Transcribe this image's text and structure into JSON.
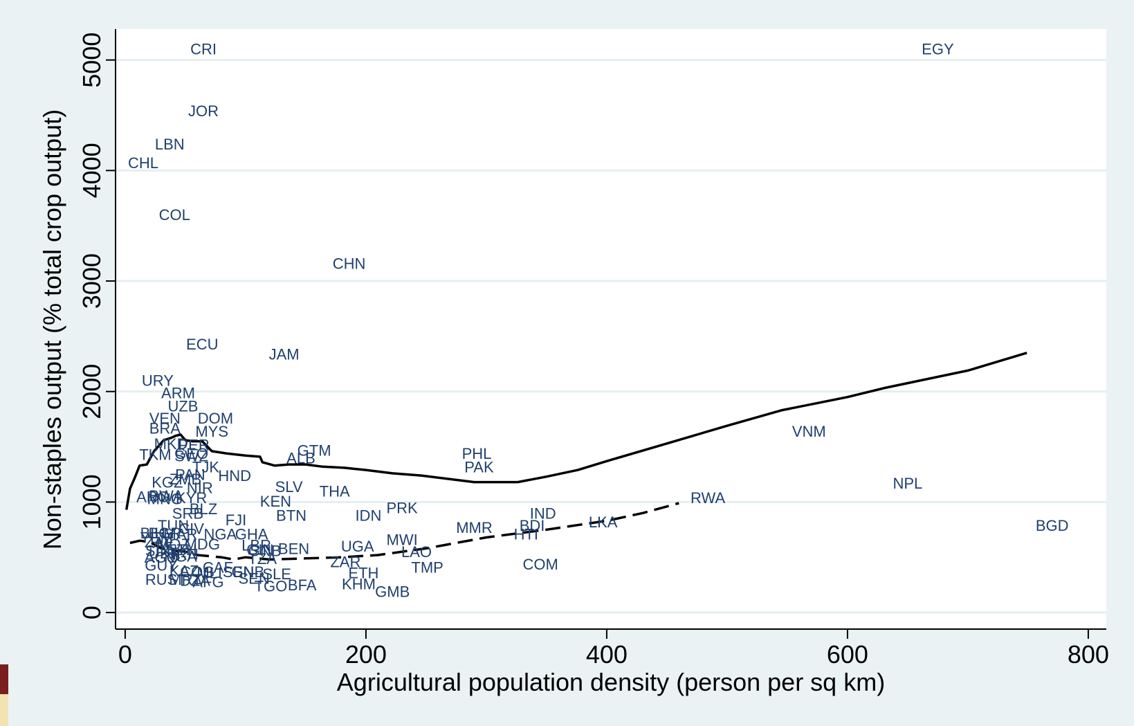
{
  "chart_data": {
    "type": "scatter",
    "xlabel": "Agricultural population density (person per sq km)",
    "ylabel": "Non-staples output (% total crop output)",
    "xlim": [
      -8,
      815
    ],
    "ylim": [
      -150,
      5280
    ],
    "xticks": [
      0,
      200,
      400,
      600,
      800
    ],
    "yticks": [
      0,
      1000,
      2000,
      3000,
      4000,
      5000
    ],
    "grid": "horizontal",
    "colors": {
      "background": "#eaf2f3",
      "plot": "#ffffff",
      "label": "#1f3f6e",
      "axis": "#000000",
      "grid": "#e4eef0"
    },
    "points": [
      {
        "label": "CRI",
        "x": 65,
        "y": 5100
      },
      {
        "label": "EGY",
        "x": 675,
        "y": 5100
      },
      {
        "label": "JOR",
        "x": 65,
        "y": 4540
      },
      {
        "label": "LBN",
        "x": 37,
        "y": 4240
      },
      {
        "label": "CHL",
        "x": 15,
        "y": 4070
      },
      {
        "label": "COL",
        "x": 41,
        "y": 3600
      },
      {
        "label": "CHN",
        "x": 186,
        "y": 3160
      },
      {
        "label": "ECU",
        "x": 64,
        "y": 2430
      },
      {
        "label": "JAM",
        "x": 132,
        "y": 2340
      },
      {
        "label": "URY",
        "x": 27,
        "y": 2100
      },
      {
        "label": "ARM",
        "x": 44,
        "y": 1990
      },
      {
        "label": "UZB",
        "x": 48,
        "y": 1870
      },
      {
        "label": "VEN",
        "x": 33,
        "y": 1760
      },
      {
        "label": "DOM",
        "x": 75,
        "y": 1760
      },
      {
        "label": "BRA",
        "x": 33,
        "y": 1670
      },
      {
        "label": "MYS",
        "x": 72,
        "y": 1640
      },
      {
        "label": "VNM",
        "x": 568,
        "y": 1640
      },
      {
        "label": "MKD",
        "x": 38,
        "y": 1530
      },
      {
        "label": "PER",
        "x": 57,
        "y": 1520
      },
      {
        "label": "GTM",
        "x": 157,
        "y": 1470
      },
      {
        "label": "PHL",
        "x": 292,
        "y": 1440
      },
      {
        "label": "TKM",
        "x": 25,
        "y": 1430
      },
      {
        "label": "GEO",
        "x": 55,
        "y": 1440
      },
      {
        "label": "SWZ",
        "x": 55,
        "y": 1420
      },
      {
        "label": "ALB",
        "x": 146,
        "y": 1400
      },
      {
        "label": "PAK",
        "x": 294,
        "y": 1320
      },
      {
        "label": "TJK",
        "x": 67,
        "y": 1320
      },
      {
        "label": "HND",
        "x": 91,
        "y": 1240
      },
      {
        "label": "PAN",
        "x": 54,
        "y": 1250
      },
      {
        "label": "KGZ",
        "x": 35,
        "y": 1180
      },
      {
        "label": "ZMB",
        "x": 50,
        "y": 1210
      },
      {
        "label": "NPL",
        "x": 650,
        "y": 1170
      },
      {
        "label": "SLV",
        "x": 136,
        "y": 1140
      },
      {
        "label": "NIR",
        "x": 62,
        "y": 1130
      },
      {
        "label": "THA",
        "x": 174,
        "y": 1100
      },
      {
        "label": "ARG",
        "x": 23,
        "y": 1050
      },
      {
        "label": "BWA",
        "x": 34,
        "y": 1060
      },
      {
        "label": "MNG",
        "x": 33,
        "y": 1030
      },
      {
        "label": "KYR",
        "x": 55,
        "y": 1040
      },
      {
        "label": "RWA",
        "x": 484,
        "y": 1040
      },
      {
        "label": "KEN",
        "x": 125,
        "y": 1010
      },
      {
        "label": "PRK",
        "x": 230,
        "y": 950
      },
      {
        "label": "BLZ",
        "x": 65,
        "y": 940
      },
      {
        "label": "SRB",
        "x": 52,
        "y": 900
      },
      {
        "label": "IND",
        "x": 347,
        "y": 900
      },
      {
        "label": "BTN",
        "x": 138,
        "y": 880
      },
      {
        "label": "IDN",
        "x": 202,
        "y": 880
      },
      {
        "label": "FJI",
        "x": 92,
        "y": 840
      },
      {
        "label": "BGD",
        "x": 770,
        "y": 790
      },
      {
        "label": "LKA",
        "x": 397,
        "y": 820
      },
      {
        "label": "TUN",
        "x": 40,
        "y": 790
      },
      {
        "label": "BDI",
        "x": 338,
        "y": 790
      },
      {
        "label": "MMR",
        "x": 290,
        "y": 770
      },
      {
        "label": "CIV",
        "x": 55,
        "y": 760
      },
      {
        "label": "HTI",
        "x": 333,
        "y": 710
      },
      {
        "label": "BIH",
        "x": 23,
        "y": 720
      },
      {
        "label": "BGR",
        "x": 33,
        "y": 720
      },
      {
        "label": "MAR",
        "x": 46,
        "y": 710
      },
      {
        "label": "NGA",
        "x": 79,
        "y": 710
      },
      {
        "label": "GHA",
        "x": 105,
        "y": 710
      },
      {
        "label": "MWI",
        "x": 230,
        "y": 660
      },
      {
        "label": "YEM",
        "x": 26,
        "y": 680
      },
      {
        "label": "UGA",
        "x": 193,
        "y": 600
      },
      {
        "label": "LBR",
        "x": 109,
        "y": 610
      },
      {
        "label": "BEN",
        "x": 140,
        "y": 580
      },
      {
        "label": "MDG",
        "x": 64,
        "y": 620
      },
      {
        "label": "COM",
        "x": 345,
        "y": 440
      },
      {
        "label": "ZAF",
        "x": 28,
        "y": 640
      },
      {
        "label": "MOZ",
        "x": 40,
        "y": 620
      },
      {
        "label": "GIN",
        "x": 112,
        "y": 570
      },
      {
        "label": "GNB",
        "x": 116,
        "y": 560
      },
      {
        "label": "ETH",
        "x": 47,
        "y": 570
      },
      {
        "label": "LAO",
        "x": 242,
        "y": 550
      },
      {
        "label": "SDN",
        "x": 30,
        "y": 560
      },
      {
        "label": "UKR",
        "x": 33,
        "y": 540
      },
      {
        "label": "IRN",
        "x": 50,
        "y": 530
      },
      {
        "label": "TZA",
        "x": 114,
        "y": 490
      },
      {
        "label": "AGO",
        "x": 30,
        "y": 500
      },
      {
        "label": "NGA",
        "x": 46,
        "y": 510
      },
      {
        "label": "ZAR",
        "x": 183,
        "y": 460
      },
      {
        "label": "TMP",
        "x": 251,
        "y": 410
      },
      {
        "label": "CAF",
        "x": 77,
        "y": 410
      },
      {
        "label": "GUY",
        "x": 30,
        "y": 430
      },
      {
        "label": "KAZ",
        "x": 49,
        "y": 380
      },
      {
        "label": "COG",
        "x": 60,
        "y": 370
      },
      {
        "label": "MLI",
        "x": 70,
        "y": 360
      },
      {
        "label": "SEN",
        "x": 94,
        "y": 370
      },
      {
        "label": "GNB",
        "x": 102,
        "y": 370
      },
      {
        "label": "ETH",
        "x": 198,
        "y": 360
      },
      {
        "label": "SLE",
        "x": 126,
        "y": 350
      },
      {
        "label": "SEN",
        "x": 107,
        "y": 310
      },
      {
        "label": "RUS",
        "x": 30,
        "y": 300
      },
      {
        "label": "MRT",
        "x": 50,
        "y": 300
      },
      {
        "label": "DZA",
        "x": 58,
        "y": 290
      },
      {
        "label": "AFG",
        "x": 69,
        "y": 280
      },
      {
        "label": "TGO",
        "x": 121,
        "y": 240
      },
      {
        "label": "BFA",
        "x": 147,
        "y": 250
      },
      {
        "label": "KHM",
        "x": 194,
        "y": 260
      },
      {
        "label": "GMB",
        "x": 222,
        "y": 190
      }
    ],
    "lines": [
      {
        "style": "solid",
        "x": [
          1,
          4,
          8,
          12,
          18,
          24,
          28,
          32,
          38,
          42,
          46,
          50,
          56,
          64,
          72,
          84,
          100,
          112,
          114,
          124,
          136,
          150,
          164,
          182,
          200,
          222,
          246,
          268,
          290,
          310,
          326,
          350,
          376,
          400,
          450,
          500,
          545,
          600,
          630,
          700,
          749
        ],
        "y": [
          930,
          1120,
          1220,
          1330,
          1340,
          1460,
          1510,
          1560,
          1580,
          1600,
          1610,
          1560,
          1550,
          1550,
          1460,
          1440,
          1420,
          1410,
          1360,
          1330,
          1340,
          1340,
          1320,
          1310,
          1290,
          1260,
          1240,
          1210,
          1180,
          1180,
          1180,
          1230,
          1290,
          1370,
          1530,
          1690,
          1830,
          1950,
          2030,
          2190,
          2350
        ]
      },
      {
        "style": "dashed",
        "x": [
          4,
          12,
          20,
          30,
          40,
          50,
          60,
          70,
          80,
          90,
          100,
          120,
          150,
          180,
          210,
          250,
          300,
          350,
          400,
          430,
          460
        ],
        "y": [
          630,
          650,
          640,
          580,
          560,
          550,
          520,
          510,
          500,
          480,
          500,
          480,
          490,
          500,
          520,
          580,
          680,
          750,
          830,
          900,
          990
        ]
      }
    ]
  }
}
